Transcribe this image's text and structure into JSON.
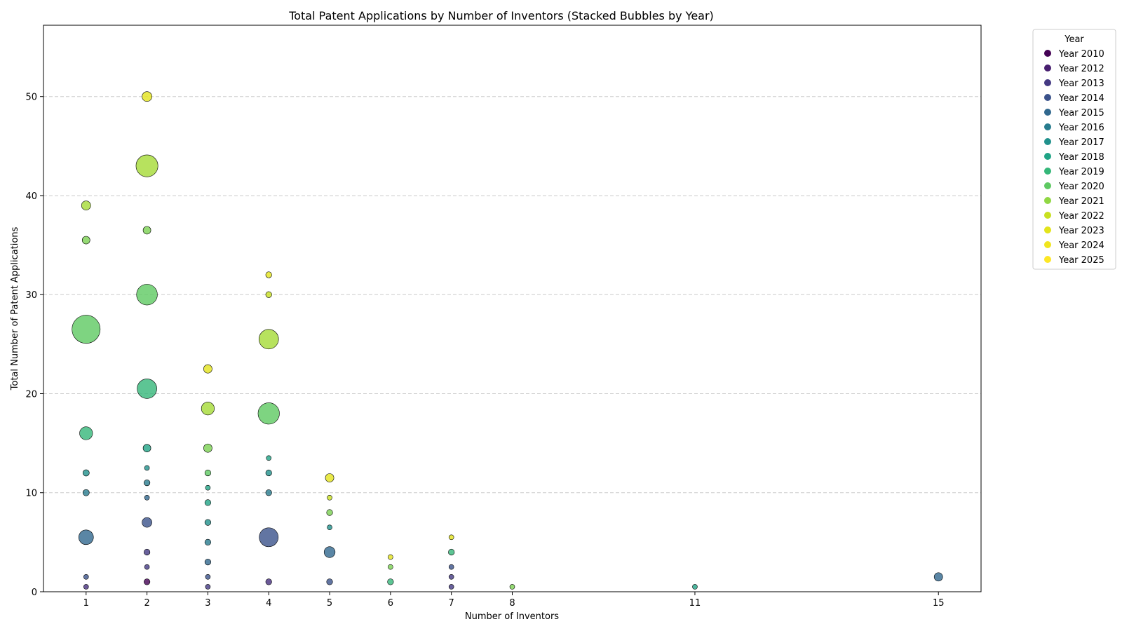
{
  "chart_data": {
    "type": "scatter",
    "title": "Total Patent Applications by Number of Inventors (Stacked Bubbles by Year)",
    "xlabel": "Number of Inventors",
    "ylabel": "Total Number of Patent Applications",
    "xlim": [
      0.3,
      15.7
    ],
    "ylim": [
      0,
      57.2
    ],
    "xticks": [
      1,
      2,
      3,
      4,
      5,
      6,
      7,
      8,
      11,
      15
    ],
    "yticks": [
      0,
      10,
      20,
      30,
      40,
      50
    ],
    "grid": "y-dashed",
    "legend": {
      "title": "Year",
      "placement": "outside-top-right",
      "entries": [
        {
          "label": "Year 2010",
          "color": "#440154"
        },
        {
          "label": "Year 2012",
          "color": "#481f70"
        },
        {
          "label": "Year 2013",
          "color": "#443983"
        },
        {
          "label": "Year 2014",
          "color": "#3b528b"
        },
        {
          "label": "Year 2015",
          "color": "#31688e"
        },
        {
          "label": "Year 2016",
          "color": "#287c8e"
        },
        {
          "label": "Year 2017",
          "color": "#21918c"
        },
        {
          "label": "Year 2018",
          "color": "#20a486"
        },
        {
          "label": "Year 2019",
          "color": "#35b779"
        },
        {
          "label": "Year 2020",
          "color": "#5ec962"
        },
        {
          "label": "Year 2021",
          "color": "#90d743"
        },
        {
          "label": "Year 2022",
          "color": "#c8e020"
        },
        {
          "label": "Year 2023",
          "color": "#e3e41b"
        },
        {
          "label": "Year 2024",
          "color": "#f0e51e"
        },
        {
          "label": "Year 2025",
          "color": "#fde725"
        }
      ]
    },
    "bubbles": [
      {
        "x": 1,
        "y": 0.5,
        "size": 1,
        "color": "#46307e"
      },
      {
        "x": 1,
        "y": 1.5,
        "size": 1,
        "color": "#3b528b"
      },
      {
        "x": 1,
        "y": 5.5,
        "size": 9,
        "color": "#31688e"
      },
      {
        "x": 1,
        "y": 10,
        "size": 1.7,
        "color": "#287c8e"
      },
      {
        "x": 1,
        "y": 12,
        "size": 1.7,
        "color": "#21918c"
      },
      {
        "x": 1,
        "y": 16,
        "size": 7,
        "color": "#35b779"
      },
      {
        "x": 1,
        "y": 26.5,
        "size": 33,
        "color": "#5ec962"
      },
      {
        "x": 1,
        "y": 35.5,
        "size": 2.5,
        "color": "#7ad151"
      },
      {
        "x": 1,
        "y": 39,
        "size": 3.5,
        "color": "#a5db36"
      },
      {
        "x": 2,
        "y": 1,
        "size": 1.5,
        "color": "#440154"
      },
      {
        "x": 2,
        "y": 2.5,
        "size": 1,
        "color": "#443983"
      },
      {
        "x": 2,
        "y": 4,
        "size": 1.5,
        "color": "#443983"
      },
      {
        "x": 2,
        "y": 7,
        "size": 4,
        "color": "#3b528b"
      },
      {
        "x": 2,
        "y": 9.5,
        "size": 1,
        "color": "#31688e"
      },
      {
        "x": 2,
        "y": 11,
        "size": 1.5,
        "color": "#287c8e"
      },
      {
        "x": 2,
        "y": 12.5,
        "size": 1,
        "color": "#21918c"
      },
      {
        "x": 2,
        "y": 14.5,
        "size": 2.5,
        "color": "#20a486"
      },
      {
        "x": 2,
        "y": 20.5,
        "size": 16,
        "color": "#35b779"
      },
      {
        "x": 2,
        "y": 30,
        "size": 18,
        "color": "#5ec962"
      },
      {
        "x": 2,
        "y": 36.5,
        "size": 2.5,
        "color": "#7ad151"
      },
      {
        "x": 2,
        "y": 43,
        "size": 20,
        "color": "#a5db36"
      },
      {
        "x": 2,
        "y": 50,
        "size": 4,
        "color": "#e3e41b"
      },
      {
        "x": 3,
        "y": 0.5,
        "size": 1,
        "color": "#443983"
      },
      {
        "x": 3,
        "y": 1.5,
        "size": 1,
        "color": "#3b528b"
      },
      {
        "x": 3,
        "y": 3,
        "size": 1.5,
        "color": "#31688e"
      },
      {
        "x": 3,
        "y": 5,
        "size": 1.5,
        "color": "#287c8e"
      },
      {
        "x": 3,
        "y": 7,
        "size": 1.5,
        "color": "#21918c"
      },
      {
        "x": 3,
        "y": 9,
        "size": 1.5,
        "color": "#20a486"
      },
      {
        "x": 3,
        "y": 10.5,
        "size": 1,
        "color": "#20a486"
      },
      {
        "x": 3,
        "y": 12,
        "size": 1.5,
        "color": "#5ec962"
      },
      {
        "x": 3,
        "y": 14.5,
        "size": 3,
        "color": "#7ad151"
      },
      {
        "x": 3,
        "y": 18.5,
        "size": 7,
        "color": "#a5db36"
      },
      {
        "x": 3,
        "y": 22.5,
        "size": 3,
        "color": "#e3e41b"
      },
      {
        "x": 4,
        "y": 1,
        "size": 1.5,
        "color": "#46307e"
      },
      {
        "x": 4,
        "y": 5.5,
        "size": 15,
        "color": "#3b528b"
      },
      {
        "x": 4,
        "y": 10,
        "size": 1.5,
        "color": "#287c8e"
      },
      {
        "x": 4,
        "y": 12,
        "size": 1.5,
        "color": "#21918c"
      },
      {
        "x": 4,
        "y": 13.5,
        "size": 1,
        "color": "#20a486"
      },
      {
        "x": 4,
        "y": 18,
        "size": 19,
        "color": "#5ec962"
      },
      {
        "x": 4,
        "y": 25.5,
        "size": 16,
        "color": "#a5db36"
      },
      {
        "x": 4,
        "y": 30,
        "size": 1.5,
        "color": "#c8e020"
      },
      {
        "x": 4,
        "y": 32,
        "size": 1.5,
        "color": "#e3e41b"
      },
      {
        "x": 5,
        "y": 1,
        "size": 1.5,
        "color": "#3b528b"
      },
      {
        "x": 5,
        "y": 4,
        "size": 5,
        "color": "#31688e"
      },
      {
        "x": 5,
        "y": 6.5,
        "size": 1,
        "color": "#21918c"
      },
      {
        "x": 5,
        "y": 8,
        "size": 1.5,
        "color": "#7ad151"
      },
      {
        "x": 5,
        "y": 9.5,
        "size": 1,
        "color": "#c8e020"
      },
      {
        "x": 5,
        "y": 11.5,
        "size": 3,
        "color": "#e3e41b"
      },
      {
        "x": 6,
        "y": 1,
        "size": 1.5,
        "color": "#35b779"
      },
      {
        "x": 6,
        "y": 2.5,
        "size": 1,
        "color": "#7ad151"
      },
      {
        "x": 6,
        "y": 3.5,
        "size": 1,
        "color": "#e3e41b"
      },
      {
        "x": 7,
        "y": 0.5,
        "size": 1,
        "color": "#443983"
      },
      {
        "x": 7,
        "y": 1.5,
        "size": 1,
        "color": "#443983"
      },
      {
        "x": 7,
        "y": 2.5,
        "size": 1,
        "color": "#3b528b"
      },
      {
        "x": 7,
        "y": 4,
        "size": 1.5,
        "color": "#35b779"
      },
      {
        "x": 7,
        "y": 5.5,
        "size": 1,
        "color": "#e3e41b"
      },
      {
        "x": 8,
        "y": 0.5,
        "size": 1,
        "color": "#7ad151"
      },
      {
        "x": 11,
        "y": 0.5,
        "size": 1,
        "color": "#20a486"
      },
      {
        "x": 15,
        "y": 1.5,
        "size": 3,
        "color": "#31688e"
      }
    ]
  }
}
